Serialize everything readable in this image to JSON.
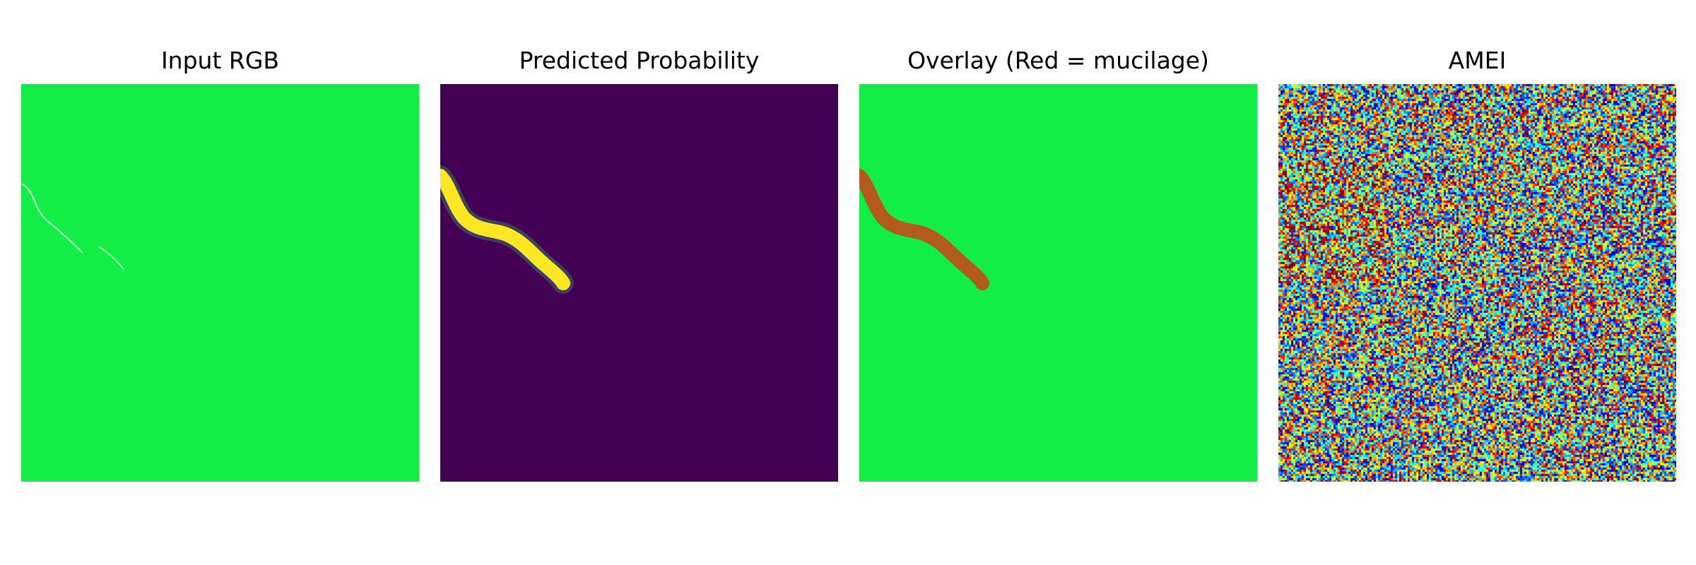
{
  "panels": [
    {
      "title": "Input RGB",
      "type": "rgb",
      "base_color": "#12ee45",
      "trace_color": "#c8ffd8"
    },
    {
      "title": "Predicted Probability",
      "type": "probability",
      "background_color": "#440154",
      "glow_color": "#2fb47c",
      "mask_color": "#fde725"
    },
    {
      "title": "Overlay (Red = mucilage)",
      "type": "overlay",
      "base_color": "#12ee45",
      "mask_color": "#b35a1f"
    },
    {
      "title": "AMEI",
      "type": "amei",
      "colormap": "jet"
    }
  ]
}
